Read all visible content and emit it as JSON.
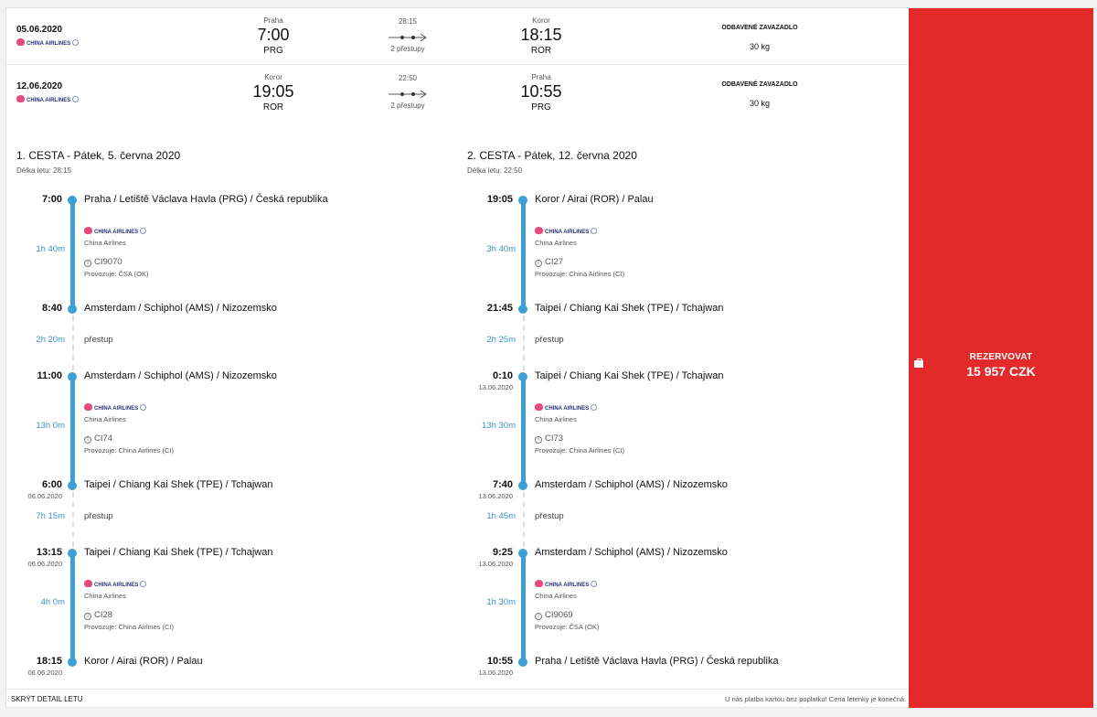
{
  "summary": [
    {
      "date": "05.06.2020",
      "airline": "CHINA AIRLINES",
      "dep_city": "Praha",
      "dep_time": "7:00",
      "dep_code": "PRG",
      "duration": "28:15",
      "stops": "2 přestupy",
      "arr_city": "Koror",
      "arr_time": "18:15",
      "arr_code": "ROR",
      "baggage_title": "ODBAVENÉ ZAVAZADLO",
      "baggage_value": "30 kg"
    },
    {
      "date": "12.06.2020",
      "airline": "CHINA AIRLINES",
      "dep_city": "Koror",
      "dep_time": "19:05",
      "dep_code": "ROR",
      "duration": "22:50",
      "stops": "2 přestupy",
      "arr_city": "Praha",
      "arr_time": "10:55",
      "arr_code": "PRG",
      "baggage_title": "ODBAVENÉ ZAVAZADLO",
      "baggage_value": "30 kg"
    }
  ],
  "trips": [
    {
      "title": "1. CESTA - Pátek, 5. června 2020",
      "flight_duration": "Délka letu: 28:15",
      "legs": [
        {
          "dep_time": "7:00",
          "dep_date": "",
          "dep_place": "Praha / Letiště Václava Havla (PRG) / Česká republika",
          "duration": "1h 40m",
          "airline_logo": "CHINA AIRLINES",
          "airline": "China Airlines",
          "flight": "CI9070",
          "operator": "Provozuje: ČSA (OK)",
          "arr_time": "8:40",
          "arr_date": "",
          "arr_place": "Amsterdam / Schiphol (AMS) / Nizozemsko",
          "transfer_duration": "2h 20m",
          "transfer_label": "přestup"
        },
        {
          "dep_time": "11:00",
          "dep_date": "",
          "dep_place": "Amsterdam / Schiphol (AMS) / Nizozemsko",
          "duration": "13h 0m",
          "airline_logo": "CHINA AIRLINES",
          "airline": "China Airlines",
          "flight": "CI74",
          "operator": "Provozuje: China Airlines (CI)",
          "arr_time": "6:00",
          "arr_date": "06.06.2020",
          "arr_place": "Taipei / Chiang Kai Shek (TPE) / Tchajwan",
          "transfer_duration": "7h 15m",
          "transfer_label": "přestup"
        },
        {
          "dep_time": "13:15",
          "dep_date": "06.06.2020",
          "dep_place": "Taipei / Chiang Kai Shek (TPE) / Tchajwan",
          "duration": "4h 0m",
          "airline_logo": "CHINA AIRLINES",
          "airline": "China Airlines",
          "flight": "CI28",
          "operator": "Provozuje: China Airlines (CI)",
          "arr_time": "18:15",
          "arr_date": "06.06.2020",
          "arr_place": "Koror / Airai (ROR) / Palau"
        }
      ]
    },
    {
      "title": "2. CESTA - Pátek, 12. června 2020",
      "flight_duration": "Délka letu: 22:50",
      "legs": [
        {
          "dep_time": "19:05",
          "dep_date": "",
          "dep_place": "Koror / Airai (ROR) / Palau",
          "duration": "3h 40m",
          "airline_logo": "CHINA AIRLINES",
          "airline": "China Airlines",
          "flight": "CI27",
          "operator": "Provozuje: China Airlines (CI)",
          "arr_time": "21:45",
          "arr_date": "",
          "arr_place": "Taipei / Chiang Kai Shek (TPE) / Tchajwan",
          "transfer_duration": "2h 25m",
          "transfer_label": "přestup"
        },
        {
          "dep_time": "0:10",
          "dep_date": "13.06.2020",
          "dep_place": "Taipei / Chiang Kai Shek (TPE) / Tchajwan",
          "duration": "13h 30m",
          "airline_logo": "CHINA AIRLINES",
          "airline": "China Airlines",
          "flight": "CI73",
          "operator": "Provozuje: China Airlines (CI)",
          "arr_time": "7:40",
          "arr_date": "13.06.2020",
          "arr_place": "Amsterdam / Schiphol (AMS) / Nizozemsko",
          "transfer_duration": "1h 45m",
          "transfer_label": "přestup"
        },
        {
          "dep_time": "9:25",
          "dep_date": "13.06.2020",
          "dep_place": "Amsterdam / Schiphol (AMS) / Nizozemsko",
          "duration": "1h 30m",
          "airline_logo": "CHINA AIRLINES",
          "airline": "China Airlines",
          "flight": "CI9069",
          "operator": "Provozuje: ČSA (OK)",
          "arr_time": "10:55",
          "arr_date": "13.06.2020",
          "arr_place": "Praha / Letiště Václava Havla (PRG) / Česká republika"
        }
      ]
    }
  ],
  "footer": {
    "hide_detail": "SKRÝT DETAIL LETU",
    "note": "U nás platba kartou bez poplatku! Cena letenky je konečná."
  },
  "book": {
    "label": "REZERVOVAT",
    "price": "15 957 CZK",
    "color": "#e32a2a",
    "icon": "briefcase-icon"
  },
  "colors": {
    "accent": "#3d9fd6",
    "duration": "#3d8fd0"
  }
}
